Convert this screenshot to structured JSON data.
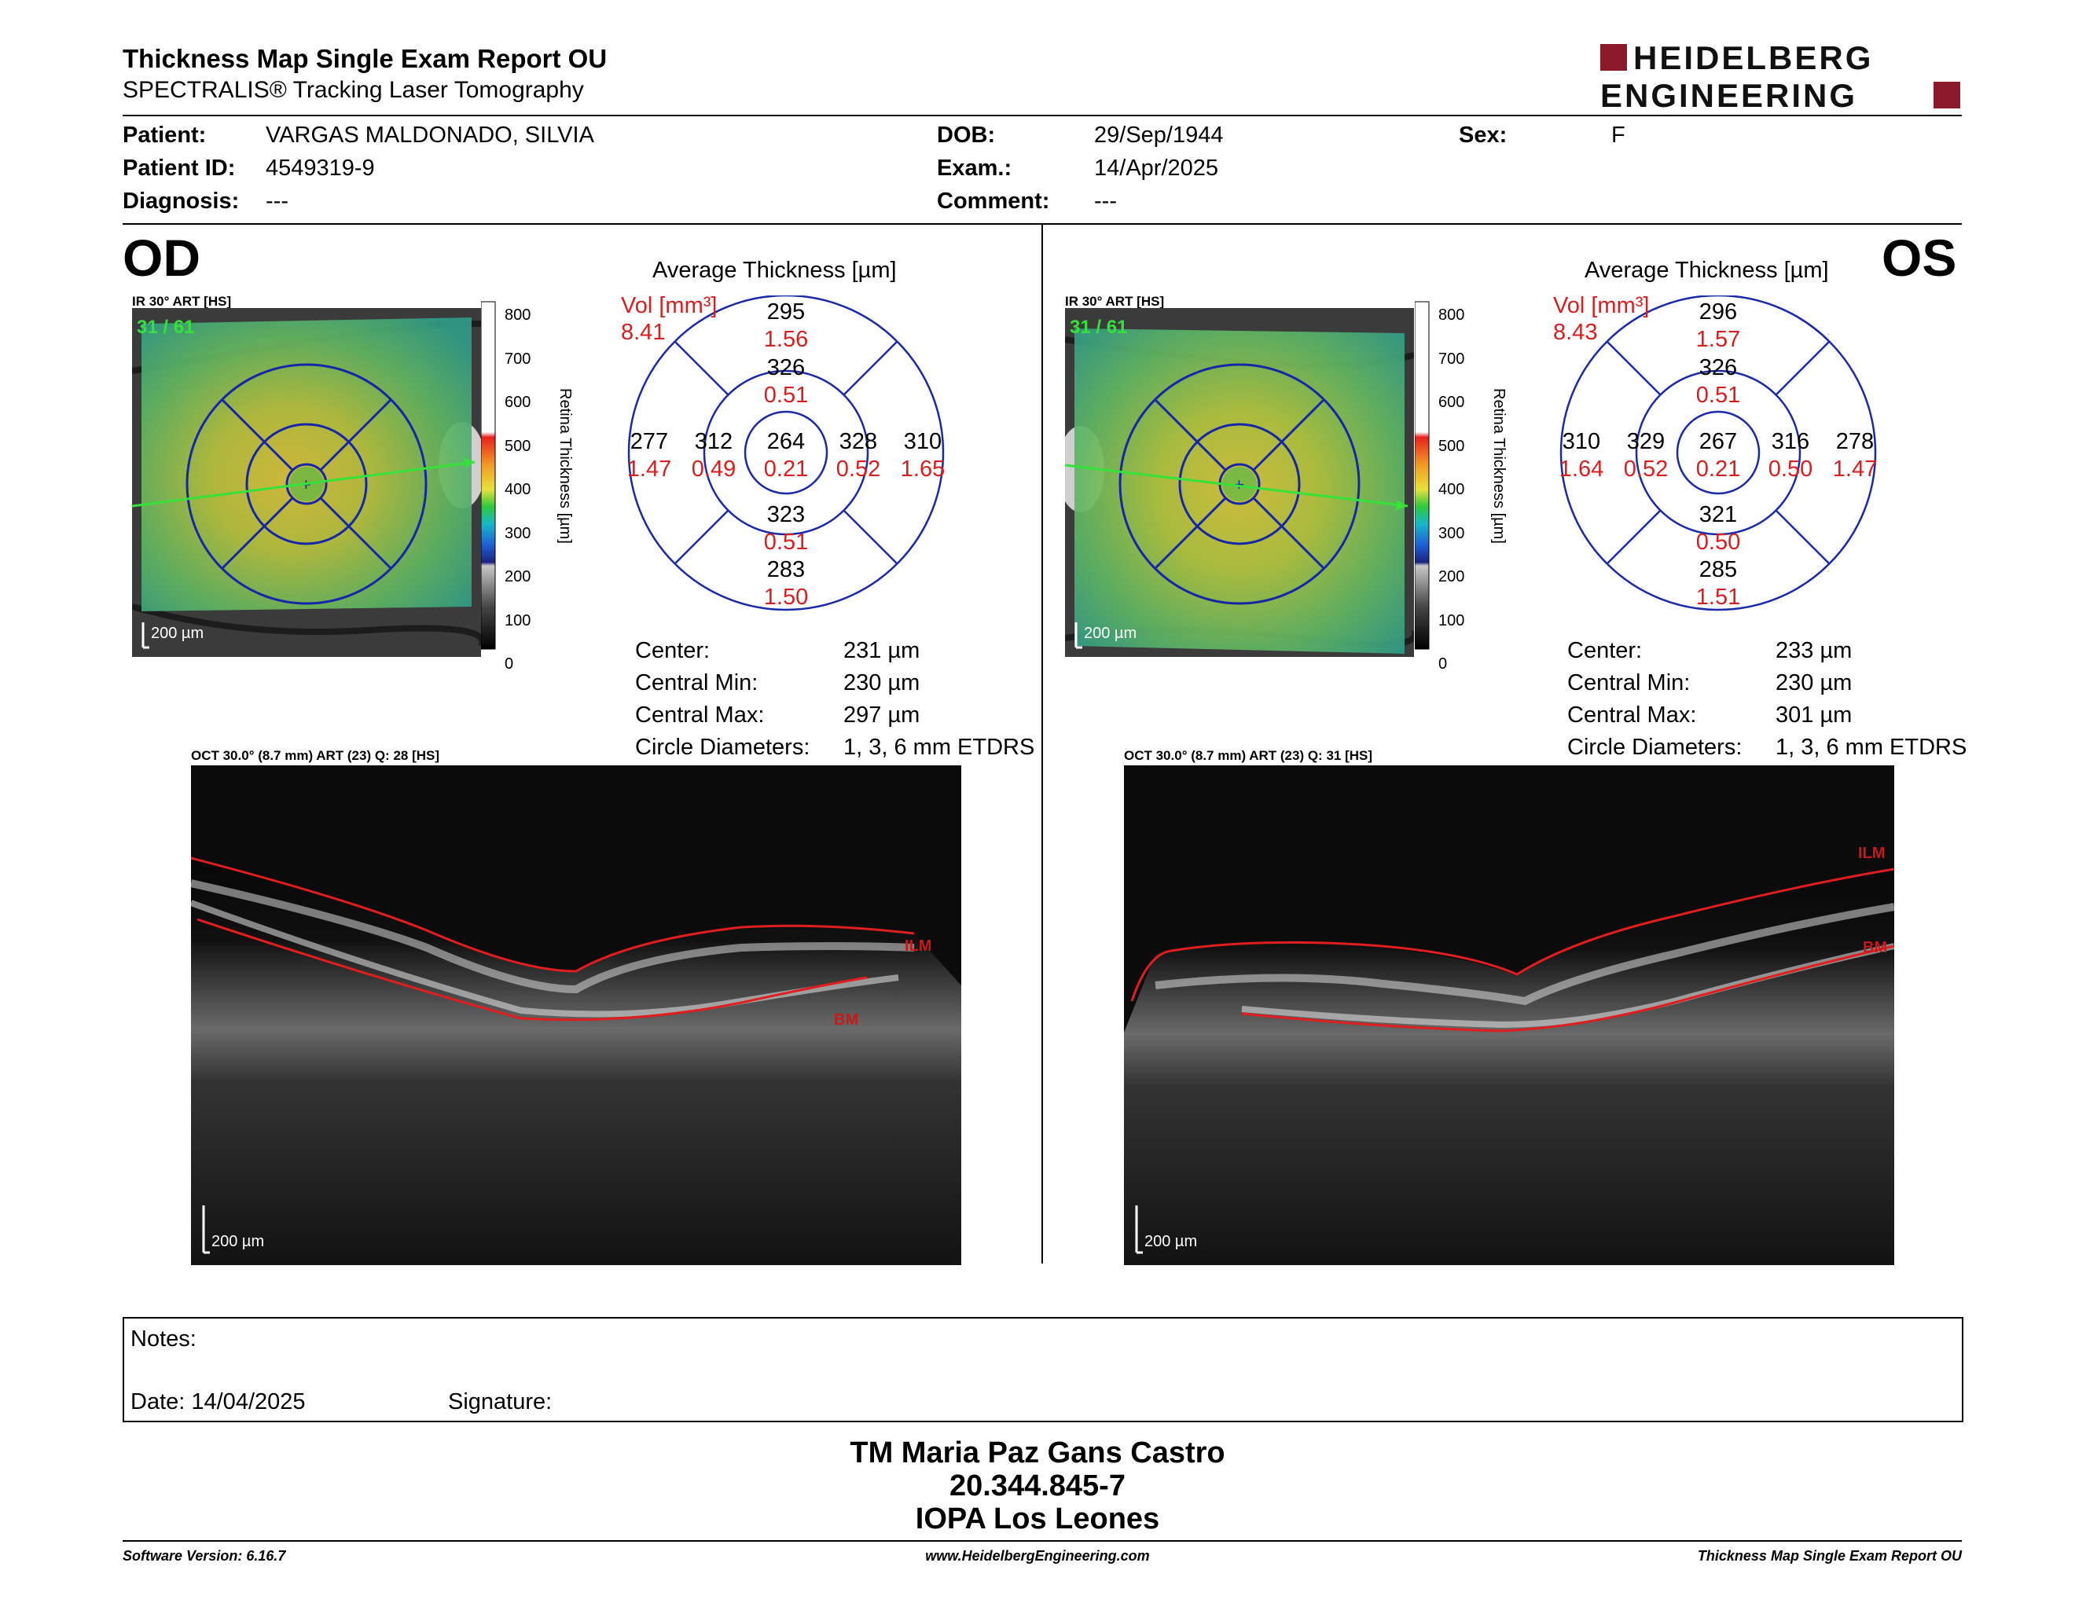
{
  "report": {
    "title": "Thickness Map Single Exam Report OU",
    "subtitle": "SPECTRALIS® Tracking Laser Tomography",
    "brand_line1": "HEIDELBERG",
    "brand_line2": "ENGINEERING",
    "brand_color": "#8b1a2b"
  },
  "patient": {
    "patient_label": "Patient:",
    "patient_value": "VARGAS MALDONADO, SILVIA",
    "id_label": "Patient ID:",
    "id_value": "4549319-9",
    "diagnosis_label": "Diagnosis:",
    "diagnosis_value": "---",
    "dob_label": "DOB:",
    "dob_value": "29/Sep/1944",
    "exam_label": "Exam.:",
    "exam_value": "14/Apr/2025",
    "comment_label": "Comment:",
    "comment_value": "---",
    "sex_label": "Sex:",
    "sex_value": "F"
  },
  "od": {
    "eye_label": "OD",
    "ir_caption": "IR 30° ART [HS]",
    "ir_count": "31 / 61",
    "ir_scale": "200 µm",
    "colorbar_ticks": [
      "800",
      "700",
      "600",
      "500",
      "400",
      "300",
      "200",
      "100",
      "0"
    ],
    "colorbar_label": "Retina Thickness [µm]",
    "avg_title": "Average Thickness [µm]",
    "vol_label": "Vol [mm³]",
    "vol_value": "8.41",
    "sectors": {
      "center": {
        "t": "264",
        "v": "0.21"
      },
      "inner_sup": {
        "t": "326",
        "v": "0.51"
      },
      "inner_inf": {
        "t": "323",
        "v": "0.51"
      },
      "inner_left": {
        "t": "312",
        "v": "0.49"
      },
      "inner_right": {
        "t": "328",
        "v": "0.52"
      },
      "outer_sup": {
        "t": "295",
        "v": "1.56"
      },
      "outer_inf": {
        "t": "283",
        "v": "1.50"
      },
      "outer_left": {
        "t": "277",
        "v": "1.47"
      },
      "outer_right": {
        "t": "310",
        "v": "1.65"
      }
    },
    "stats": [
      {
        "label": "Center:",
        "value": "231 µm"
      },
      {
        "label": "Central Min:",
        "value": "230 µm"
      },
      {
        "label": "Central Max:",
        "value": "297 µm"
      },
      {
        "label": "Circle Diameters:",
        "value": "1, 3, 6 mm ETDRS"
      }
    ],
    "oct_caption": "OCT 30.0° (8.7 mm) ART (23) Q: 28 [HS]",
    "oct_scale": "200 µm",
    "ilm_label": "ILM",
    "bm_label": "BM"
  },
  "os": {
    "eye_label": "OS",
    "ir_caption": "IR 30° ART [HS]",
    "ir_count": "31 / 61",
    "ir_scale": "200 µm",
    "colorbar_ticks": [
      "800",
      "700",
      "600",
      "500",
      "400",
      "300",
      "200",
      "100",
      "0"
    ],
    "colorbar_label": "Retina Thickness [µm]",
    "avg_title": "Average Thickness [µm]",
    "vol_label": "Vol [mm³]",
    "vol_value": "8.43",
    "sectors": {
      "center": {
        "t": "267",
        "v": "0.21"
      },
      "inner_sup": {
        "t": "326",
        "v": "0.51"
      },
      "inner_inf": {
        "t": "321",
        "v": "0.50"
      },
      "inner_left": {
        "t": "329",
        "v": "0.52"
      },
      "inner_right": {
        "t": "316",
        "v": "0.50"
      },
      "outer_sup": {
        "t": "296",
        "v": "1.57"
      },
      "outer_inf": {
        "t": "285",
        "v": "1.51"
      },
      "outer_left": {
        "t": "310",
        "v": "1.64"
      },
      "outer_right": {
        "t": "278",
        "v": "1.47"
      }
    },
    "stats": [
      {
        "label": "Center:",
        "value": "233 µm"
      },
      {
        "label": "Central Min:",
        "value": "230 µm"
      },
      {
        "label": "Central Max:",
        "value": "301 µm"
      },
      {
        "label": "Circle Diameters:",
        "value": "1, 3, 6 mm ETDRS"
      }
    ],
    "oct_caption": "OCT 30.0° (8.7 mm) ART (23) Q: 31 [HS]",
    "oct_scale": "200 µm",
    "ilm_label": "ILM",
    "bm_label": "BM"
  },
  "notes": {
    "notes_label": "Notes:",
    "date_label": "Date: 14/04/2025",
    "signature_label": "Signature:"
  },
  "signer": {
    "name": "TM Maria Paz Gans Castro",
    "id": "20.344.845-7",
    "org": "IOPA Los Leones"
  },
  "footer": {
    "software": "Software Version: 6.16.7",
    "website": "www.HeidelbergEngineering.com",
    "report_name": "Thickness Map Single Exam Report OU"
  }
}
